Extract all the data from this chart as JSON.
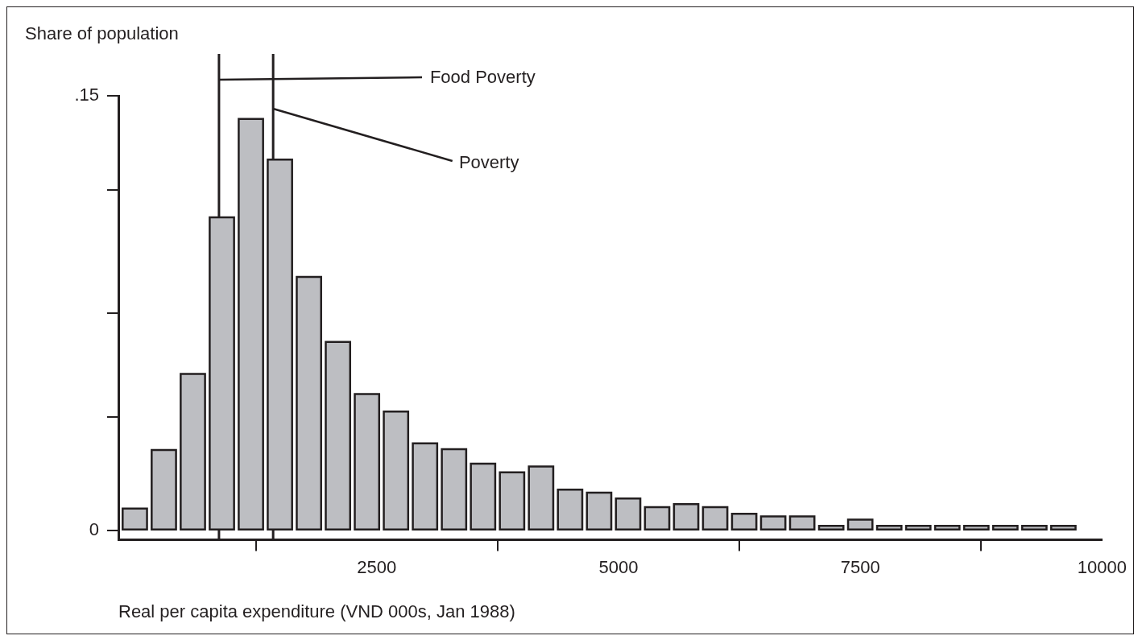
{
  "chart_data": {
    "type": "histogram",
    "xlabel": "Real per capita expenditure (VND 000s, Jan 1988)",
    "ylabel": "Share of population",
    "bins": [
      -150,
      150,
      450,
      750,
      1050,
      1350,
      1650,
      1950,
      2250,
      2550,
      2850,
      3150,
      3450,
      3750,
      4050,
      4350,
      4650,
      4950,
      5250,
      5550,
      5850,
      6150,
      6450,
      6750,
      7050,
      7350,
      7650,
      7950,
      8250,
      8550,
      8850,
      9150,
      9450,
      9750
    ],
    "values": [
      0.0075,
      0.0277,
      0.054,
      0.108,
      0.142,
      0.128,
      0.0875,
      0.065,
      0.047,
      0.041,
      0.03,
      0.028,
      0.023,
      0.02,
      0.022,
      0.014,
      0.013,
      0.011,
      0.008,
      0.009,
      0.008,
      0.0057,
      0.0048,
      0.0048,
      0.0015,
      0.0037,
      0.0015,
      0.0015,
      0.0015,
      0.0015,
      0.0015,
      0.0015,
      0.0015
    ],
    "color": "#bdbec2",
    "xlim": [
      -170,
      10000
    ],
    "xticks": [
      2500,
      5000,
      7500,
      10000
    ],
    "ylim": [
      -0.0033,
      0.15
    ],
    "yticks": [
      0,
      {
        "value": 0.039,
        "label": null
      },
      {
        "value": 0.075,
        "label": null
      },
      {
        "value": 0.1175,
        "label": null
      },
      {
        "value": 0.15,
        "label": ".15"
      }
    ],
    "ref_lines": [
      {
        "axis": "x",
        "value": 870,
        "label": "Food Poverty"
      },
      {
        "axis": "x",
        "value": 1430,
        "label": "Poverty"
      }
    ],
    "grid": false,
    "legend": false
  }
}
